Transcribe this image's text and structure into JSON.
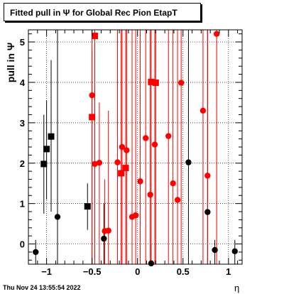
{
  "chart_data": {
    "type": "scatter",
    "title": "Fitted pull in  Ψ  for Global Rec Pion EtapT",
    "xlabel": "η",
    "ylabel": "pull in  Ψ",
    "xlim": [
      -1.2,
      1.15
    ],
    "ylim": [
      -0.5,
      5.3
    ],
    "x_ticks": [
      -1,
      -0.5,
      0,
      0.5,
      1
    ],
    "x_tick_labels": [
      "−1",
      "−0.5",
      "0",
      "0.5",
      "1"
    ],
    "y_ticks": [
      0,
      1,
      2,
      3,
      4,
      5
    ],
    "y_tick_labels": [
      "0",
      "1",
      "2",
      "3",
      "4",
      "5"
    ],
    "grid": true,
    "series": [
      {
        "marker": "square",
        "color": "#000000",
        "points": [
          {
            "x": -1.03,
            "y": 1.98,
            "lo": 0.75,
            "hi": 3.2
          },
          {
            "x": -1.0,
            "y": 2.35,
            "lo": 1.1,
            "hi": 3.55
          },
          {
            "x": -0.95,
            "y": 2.66,
            "lo": 0.8,
            "hi": 4.55
          },
          {
            "x": -0.55,
            "y": 0.93,
            "lo": 0.35,
            "hi": 1.5
          }
        ]
      },
      {
        "marker": "circle",
        "color": "#000000",
        "points": [
          {
            "x": -1.12,
            "y": -0.2,
            "lo": -0.5,
            "hi": 0.1
          },
          {
            "x": -0.88,
            "y": 0.67,
            "lo": -0.5,
            "hi": 5.3
          },
          {
            "x": -0.37,
            "y": 0.13,
            "lo": -0.5,
            "hi": 1.0
          },
          {
            "x": 0.15,
            "y": -0.48,
            "lo": -0.5,
            "hi": 0.0
          },
          {
            "x": 0.56,
            "y": 2.02,
            "lo": -0.5,
            "hi": 5.3
          },
          {
            "x": 0.77,
            "y": 0.79,
            "lo": -0.5,
            "hi": 5.3
          },
          {
            "x": 0.85,
            "y": -0.15,
            "lo": -0.5,
            "hi": 0.1
          },
          {
            "x": 1.07,
            "y": -0.18,
            "lo": -0.5,
            "hi": 0.1
          }
        ]
      },
      {
        "marker": "square",
        "color": "#ff0000",
        "points": [
          {
            "x": -0.5,
            "y": 3.14,
            "lo": -0.5,
            "hi": 5.3
          },
          {
            "x": -0.47,
            "y": 5.15,
            "lo": -0.5,
            "hi": 5.3
          },
          {
            "x": -0.18,
            "y": 1.75,
            "lo": -0.5,
            "hi": 5.3
          },
          {
            "x": -0.13,
            "y": 1.88,
            "lo": -0.5,
            "hi": 5.3
          },
          {
            "x": 0.15,
            "y": 4.01,
            "lo": -0.5,
            "hi": 5.3
          },
          {
            "x": 0.2,
            "y": 3.99,
            "lo": -0.5,
            "hi": 5.3
          }
        ]
      },
      {
        "marker": "circle",
        "color": "#ff0000",
        "points": [
          {
            "x": -0.5,
            "y": 3.68,
            "lo": -0.5,
            "hi": 4.8
          },
          {
            "x": -0.47,
            "y": 1.98,
            "lo": -0.5,
            "hi": 4.8
          },
          {
            "x": -0.42,
            "y": 2.01,
            "lo": -0.5,
            "hi": 3.5
          },
          {
            "x": -0.36,
            "y": 0.32,
            "lo": -0.5,
            "hi": 1.6
          },
          {
            "x": -0.32,
            "y": 0.33,
            "lo": -0.5,
            "hi": 3.3
          },
          {
            "x": -0.22,
            "y": 2.02,
            "lo": -0.5,
            "hi": 5.3
          },
          {
            "x": -0.17,
            "y": 2.4,
            "lo": -0.5,
            "hi": 5.3
          },
          {
            "x": -0.12,
            "y": 2.32,
            "lo": -0.5,
            "hi": 5.3
          },
          {
            "x": -0.06,
            "y": 0.67,
            "lo": -0.5,
            "hi": 5.3
          },
          {
            "x": -0.02,
            "y": 0.71,
            "lo": -0.5,
            "hi": 5.3
          },
          {
            "x": 0.03,
            "y": 1.55,
            "lo": -0.5,
            "hi": 5.3
          },
          {
            "x": 0.09,
            "y": 2.62,
            "lo": -0.5,
            "hi": 5.3
          },
          {
            "x": 0.14,
            "y": 1.22,
            "lo": -0.5,
            "hi": 5.3
          },
          {
            "x": 0.19,
            "y": 2.46,
            "lo": -0.5,
            "hi": 5.3
          },
          {
            "x": 0.34,
            "y": 2.67,
            "lo": -0.5,
            "hi": 5.3
          },
          {
            "x": 0.39,
            "y": 1.5,
            "lo": -0.5,
            "hi": 5.3
          },
          {
            "x": 0.44,
            "y": 1.09,
            "lo": -0.5,
            "hi": 5.3
          },
          {
            "x": 0.48,
            "y": 3.99,
            "lo": -0.5,
            "hi": 5.3
          },
          {
            "x": 0.72,
            "y": 3.3,
            "lo": -0.5,
            "hi": 5.3
          },
          {
            "x": 0.77,
            "y": 1.69,
            "lo": -0.5,
            "hi": 5.3
          },
          {
            "x": 0.87,
            "y": 5.2,
            "lo": -0.5,
            "hi": 5.3
          }
        ]
      }
    ]
  },
  "footer": {
    "timestamp": "Thu Nov 24 13:55:54 2022"
  }
}
